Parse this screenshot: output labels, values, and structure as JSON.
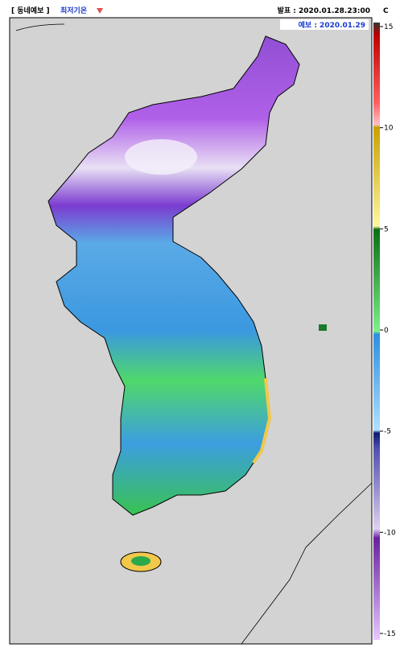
{
  "header": {
    "bracket_title": "[ 동네예보 ]",
    "variable_name": "최저기온",
    "issued": "발표 : 2020.01.28.23:00",
    "forecast": "예보 : 2020.01.29"
  },
  "legend": {
    "unit": "C",
    "ticks": [
      15,
      10,
      5,
      0,
      -5,
      -10,
      -15
    ]
  }
}
